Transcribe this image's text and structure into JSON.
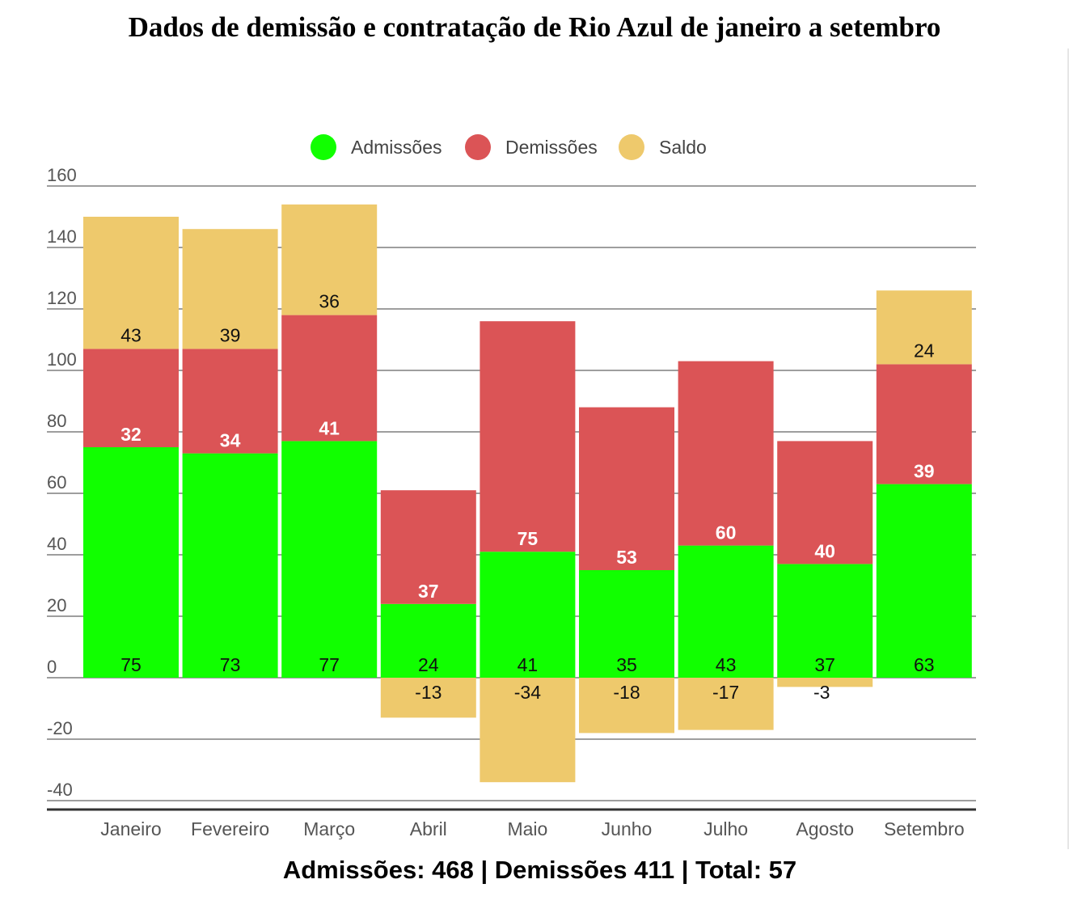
{
  "title": "Dados de demissão e contratação de Rio Azul de janeiro a setembro",
  "summary": "Admissões: 468 | Demissões 411 | Total: 57",
  "colors": {
    "admissoes": "#11ff00",
    "demissoes": "#db5456",
    "saldo": "#eec96c"
  },
  "chart_data": {
    "type": "bar",
    "stacked": true,
    "title": "Dados de demissão e contratação de Rio Azul de janeiro a setembro",
    "categories": [
      "Janeiro",
      "Fevereiro",
      "Março",
      "Abril",
      "Maio",
      "Junho",
      "Julho",
      "Agosto",
      "Setembro"
    ],
    "series": [
      {
        "name": "Admissões",
        "values": [
          75,
          73,
          77,
          24,
          41,
          35,
          43,
          37,
          63
        ]
      },
      {
        "name": "Demissões",
        "values": [
          32,
          34,
          41,
          37,
          75,
          53,
          60,
          40,
          39
        ]
      },
      {
        "name": "Saldo",
        "values": [
          43,
          39,
          36,
          -13,
          -34,
          -18,
          -17,
          -3,
          24
        ]
      }
    ],
    "ylim": [
      -40,
      160
    ],
    "yticks": [
      160,
      140,
      120,
      100,
      80,
      60,
      40,
      20,
      0,
      -20,
      -40
    ],
    "legend_position": "top-center",
    "grid": true
  }
}
